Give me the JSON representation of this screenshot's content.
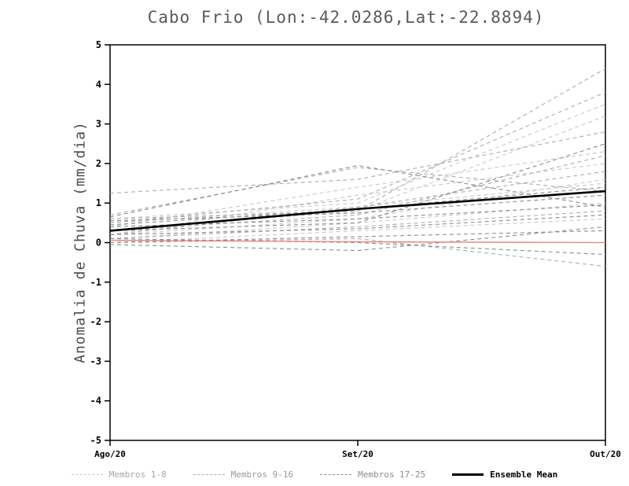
{
  "title": "Cabo Frio (Lon:-42.0286,Lat:-22.8894)",
  "chart_data": {
    "type": "line",
    "title": "Cabo Frio (Lon:-42.0286,Lat:-22.8894)",
    "x_categories": [
      "Ago/20",
      "Set/20",
      "Out/20"
    ],
    "xlabel": "",
    "ylabel": "Anomalia de Chuva (mm/dia)",
    "ylim": [
      -5,
      5
    ],
    "ytick_step": 1,
    "grid": false,
    "legend_position": "bottom",
    "series_groups": [
      {
        "name": "Membros 1-8",
        "color": "#c9c9c9",
        "style": "dashed",
        "members": [
          [
            0.6,
            1.0,
            3.5
          ],
          [
            0.3,
            0.8,
            3.2
          ],
          [
            0.2,
            1.2,
            2.0
          ],
          [
            0.5,
            0.9,
            1.5
          ],
          [
            0.1,
            0.5,
            1.0
          ],
          [
            0.0,
            0.3,
            0.6
          ],
          [
            0.4,
            1.4,
            2.3
          ],
          [
            0.2,
            0.6,
            1.6
          ]
        ]
      },
      {
        "name": "Membros 9-16",
        "color": "#adadad",
        "style": "dashed",
        "members": [
          [
            1.25,
            1.6,
            2.8
          ],
          [
            0.7,
            1.9,
            1.3
          ],
          [
            0.6,
            0.8,
            4.4
          ],
          [
            0.3,
            0.7,
            2.2
          ],
          [
            0.1,
            0.4,
            0.8
          ],
          [
            0.0,
            0.1,
            -0.6
          ],
          [
            0.5,
            1.1,
            3.8
          ],
          [
            0.2,
            0.9,
            1.8
          ]
        ]
      },
      {
        "name": "Membros 17-25",
        "color": "#8c8c8c",
        "style": "dashed",
        "members": [
          [
            0.65,
            1.95,
            0.9
          ],
          [
            0.4,
            0.6,
            0.95
          ],
          [
            0.1,
            0.0,
            -0.3
          ],
          [
            -0.05,
            -0.2,
            0.4
          ],
          [
            0.3,
            0.5,
            2.5
          ],
          [
            0.55,
            0.75,
            1.2
          ],
          [
            0.2,
            0.35,
            0.7
          ],
          [
            0.0,
            0.15,
            0.3
          ],
          [
            0.45,
            0.85,
            1.4
          ]
        ]
      }
    ],
    "reference_line": {
      "name": "reference-zero-line",
      "color": "#e87a7a",
      "style": "solid",
      "values": [
        0.06,
        0.02,
        0.0
      ]
    },
    "ensemble_mean": {
      "name": "Ensemble Mean",
      "color": "#000000",
      "style": "solid",
      "values": [
        0.3,
        0.85,
        1.3
      ]
    }
  },
  "legend": {
    "items": [
      {
        "label": "Membros 1-8",
        "color": "#c9c9c9",
        "text_color": "#a6a6a6",
        "style": "dashed"
      },
      {
        "label": "Membros 9-16",
        "color": "#adadad",
        "text_color": "#9a9a9a",
        "style": "dashed"
      },
      {
        "label": "Membros 17-25",
        "color": "#8c8c8c",
        "text_color": "#8c8c8c",
        "style": "dashed"
      },
      {
        "label": "Ensemble Mean",
        "color": "#000000",
        "text_color": "#000000",
        "style": "solid"
      }
    ]
  }
}
